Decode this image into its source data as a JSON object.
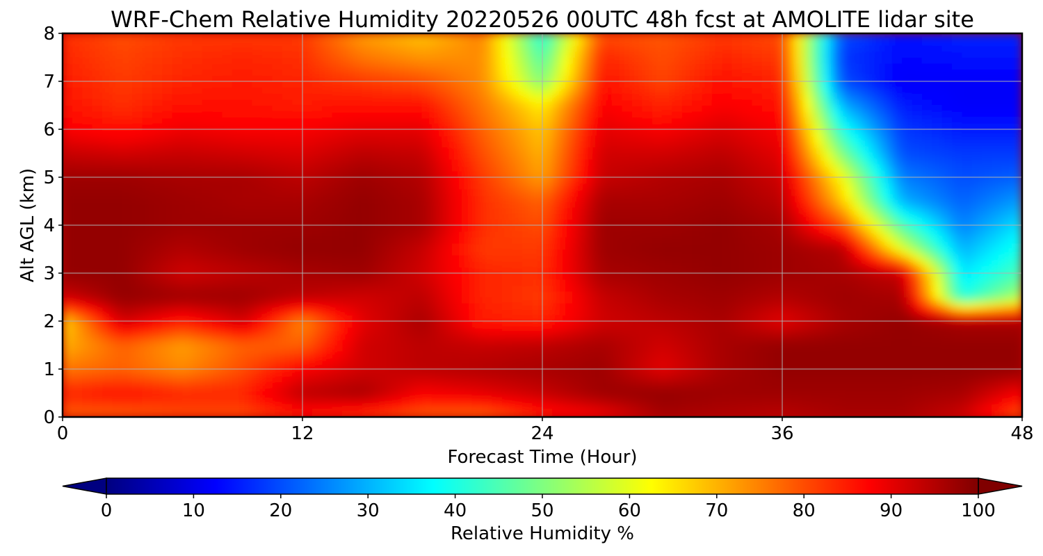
{
  "chart_data": {
    "type": "heatmap",
    "title": "WRF-Chem Relative Humidity 20220526 00UTC 48h fcst at AMOLITE lidar site",
    "xlabel": "Forecast Time (Hour)",
    "ylabel": "Alt AGL (km)",
    "xlim": [
      0,
      48
    ],
    "ylim": [
      0,
      8
    ],
    "xticks": [
      "0",
      "12",
      "24",
      "36",
      "48"
    ],
    "yticks": [
      "0",
      "1",
      "2",
      "3",
      "4",
      "5",
      "6",
      "7",
      "8"
    ],
    "grid": true,
    "colorbar": {
      "label": "Relative Humidity %",
      "min": 0,
      "max": 100,
      "ticks": [
        "0",
        "10",
        "20",
        "30",
        "40",
        "50",
        "60",
        "70",
        "80",
        "90",
        "100"
      ],
      "extend": "both",
      "colormap": "jet"
    },
    "x": [
      0,
      3,
      6,
      9,
      12,
      15,
      18,
      21,
      24,
      27,
      30,
      33,
      36,
      39,
      42,
      45,
      48
    ],
    "y": [
      0,
      0.5,
      1,
      1.5,
      2,
      2.5,
      3,
      3.5,
      4,
      4.5,
      5,
      5.5,
      6,
      6.5,
      7,
      7.5,
      8
    ],
    "z": [
      [
        78,
        78,
        80,
        80,
        85,
        82,
        78,
        77,
        84,
        88,
        96,
        95,
        94,
        96,
        96,
        92,
        78
      ],
      [
        84,
        86,
        84,
        84,
        94,
        96,
        88,
        90,
        93,
        97,
        98,
        97,
        97,
        97,
        97,
        96,
        88
      ],
      [
        76,
        78,
        74,
        80,
        88,
        92,
        94,
        95,
        96,
        97,
        90,
        96,
        98,
        98,
        98,
        98,
        98
      ],
      [
        70,
        78,
        72,
        78,
        78,
        92,
        94,
        93,
        94,
        96,
        92,
        96,
        98,
        98,
        98,
        98,
        98
      ],
      [
        66,
        92,
        85,
        92,
        74,
        90,
        96,
        85,
        84,
        92,
        94,
        96,
        90,
        96,
        98,
        96,
        96
      ],
      [
        92,
        98,
        97,
        97,
        94,
        92,
        94,
        84,
        82,
        93,
        96,
        97,
        95,
        97,
        96,
        40,
        55
      ],
      [
        98,
        98,
        92,
        94,
        96,
        97,
        92,
        84,
        83,
        96,
        97,
        98,
        97,
        96,
        93,
        35,
        45
      ],
      [
        98,
        98,
        95,
        97,
        98,
        98,
        93,
        82,
        82,
        97,
        98,
        98,
        97,
        95,
        60,
        30,
        40
      ],
      [
        98,
        98,
        97,
        97,
        97,
        98,
        96,
        83,
        80,
        97,
        97,
        98,
        96,
        80,
        45,
        25,
        35
      ],
      [
        98,
        98,
        97,
        96,
        96,
        98,
        96,
        83,
        78,
        96,
        96,
        97,
        94,
        68,
        30,
        22,
        28
      ],
      [
        97,
        97,
        96,
        96,
        94,
        97,
        95,
        82,
        72,
        93,
        95,
        96,
        92,
        62,
        25,
        20,
        22
      ],
      [
        93,
        92,
        93,
        92,
        91,
        94,
        93,
        80,
        70,
        92,
        92,
        94,
        90,
        50,
        20,
        18,
        18
      ],
      [
        88,
        86,
        89,
        88,
        88,
        90,
        90,
        78,
        68,
        90,
        88,
        91,
        88,
        40,
        18,
        15,
        15
      ],
      [
        86,
        83,
        86,
        86,
        85,
        86,
        86,
        76,
        64,
        88,
        84,
        88,
        86,
        30,
        15,
        12,
        12
      ],
      [
        85,
        82,
        84,
        85,
        84,
        82,
        80,
        74,
        50,
        86,
        81,
        86,
        84,
        20,
        12,
        12,
        12
      ],
      [
        84,
        81,
        83,
        84,
        83,
        76,
        73,
        74,
        45,
        84,
        80,
        84,
        82,
        18,
        13,
        14,
        14
      ],
      [
        83,
        80,
        82,
        82,
        82,
        72,
        68,
        75,
        40,
        80,
        79,
        82,
        80,
        20,
        14,
        16,
        16
      ]
    ]
  }
}
